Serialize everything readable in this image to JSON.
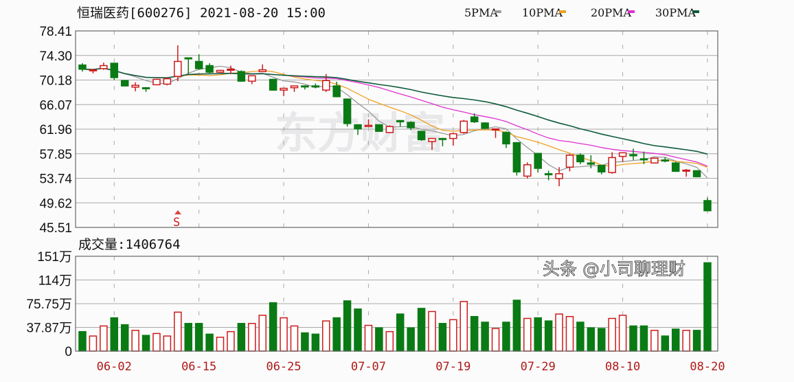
{
  "header": {
    "title": "恒瑞医药[600276] 2021-08-20 15:00",
    "legend": [
      {
        "label": "5PMA",
        "color": "#9a9a9a"
      },
      {
        "label": "10PMA",
        "color": "#f0a020"
      },
      {
        "label": "20PMA",
        "color": "#e030d0"
      },
      {
        "label": "30PMA",
        "color": "#0d5a3a"
      }
    ]
  },
  "volume_label": "成交量:1406764",
  "signal_marker": "S",
  "watermark": "东方财富",
  "credit": "头条 @小司聊理财",
  "colors": {
    "up": "#cc1a1a",
    "down": "#0a7a14",
    "grid": "#9a9a9a",
    "date": "#b01818"
  },
  "chart_data": [
    {
      "type": "candlestick",
      "title": "恒瑞医药[600276] 2021-08-20 15:00",
      "y_ticks": [
        "78.41",
        "74.30",
        "70.18",
        "66.07",
        "61.96",
        "57.85",
        "53.74",
        "49.62",
        "45.51"
      ],
      "ylim": [
        45.51,
        78.41
      ],
      "x_tick_labels": [
        "06-02",
        "06-15",
        "06-25",
        "07-07",
        "07-19",
        "07-29",
        "08-10",
        "08-20"
      ],
      "grid": true,
      "dates": [
        "05-28",
        "05-31",
        "06-01",
        "06-02",
        "06-03",
        "06-04",
        "06-07",
        "06-08",
        "06-09",
        "06-10",
        "06-11",
        "06-15",
        "06-16",
        "06-17",
        "06-18",
        "06-21",
        "06-22",
        "06-23",
        "06-24",
        "06-25",
        "06-28",
        "06-29",
        "06-30",
        "07-01",
        "07-02",
        "07-05",
        "07-06",
        "07-07",
        "07-08",
        "07-09",
        "07-12",
        "07-13",
        "07-14",
        "07-15",
        "07-16",
        "07-19",
        "07-20",
        "07-21",
        "07-22",
        "07-23",
        "07-26",
        "07-27",
        "07-28",
        "07-29",
        "07-30",
        "08-02",
        "08-03",
        "08-04",
        "08-05",
        "08-06",
        "08-09",
        "08-10",
        "08-11",
        "08-12",
        "08-13",
        "08-16",
        "08-17",
        "08-18",
        "08-19",
        "08-20"
      ],
      "open": [
        72.7,
        71.8,
        72.1,
        73.0,
        70.1,
        69.0,
        68.9,
        69.4,
        69.5,
        70.8,
        73.9,
        73.3,
        72.6,
        71.5,
        71.9,
        71.6,
        70.0,
        71.6,
        70.3,
        68.5,
        68.9,
        69.2,
        69.2,
        68.5,
        69.2,
        67.0,
        62.7,
        62.4,
        62.7,
        61.4,
        63.4,
        63.1,
        61.6,
        59.9,
        60.4,
        60.4,
        61.4,
        64.0,
        63.0,
        61.9,
        61.4,
        59.7,
        54.1,
        57.9,
        54.5,
        53.7,
        55.6,
        57.6,
        56.3,
        55.9,
        54.7,
        57.4,
        57.7,
        57.0,
        56.3,
        56.8,
        56.3,
        55.0,
        55.0,
        50.0
      ],
      "high": [
        73.0,
        72.0,
        73.1,
        73.0,
        70.2,
        69.8,
        69.0,
        70.4,
        70.6,
        76.0,
        73.9,
        74.5,
        73.0,
        71.9,
        72.6,
        71.8,
        71.0,
        72.8,
        70.4,
        68.9,
        69.2,
        69.3,
        69.6,
        71.2,
        69.9,
        67.1,
        62.8,
        63.6,
        62.8,
        62.6,
        63.5,
        63.3,
        61.7,
        60.5,
        60.5,
        61.4,
        63.5,
        64.6,
        63.1,
        62.0,
        61.6,
        59.8,
        56.4,
        58.0,
        55.0,
        55.6,
        57.8,
        57.9,
        57.6,
        56.0,
        58.1,
        58.1,
        58.7,
        58.2,
        57.2,
        57.3,
        56.5,
        55.3,
        55.1,
        50.5
      ],
      "low": [
        71.6,
        71.3,
        71.9,
        70.2,
        69.1,
        68.3,
        68.2,
        69.3,
        69.3,
        70.0,
        71.2,
        71.9,
        71.2,
        71.4,
        71.2,
        69.9,
        69.5,
        71.6,
        68.4,
        67.5,
        68.2,
        68.6,
        68.8,
        68.2,
        67.3,
        62.4,
        61.0,
        62.3,
        61.5,
        61.3,
        62.4,
        61.8,
        60.0,
        58.5,
        59.1,
        59.2,
        61.2,
        63.0,
        62.0,
        60.5,
        58.8,
        54.2,
        53.7,
        54.7,
        53.4,
        52.4,
        54.9,
        56.1,
        55.4,
        54.4,
        54.5,
        56.5,
        56.8,
        56.1,
        56.2,
        56.4,
        54.8,
        54.0,
        53.9,
        48.2
      ],
      "close": [
        72.0,
        71.9,
        72.6,
        70.6,
        69.2,
        69.3,
        68.8,
        70.3,
        70.4,
        73.3,
        73.8,
        72.1,
        71.5,
        71.8,
        72.0,
        70.0,
        70.9,
        71.9,
        68.5,
        68.8,
        69.2,
        69.1,
        69.1,
        70.1,
        67.4,
        62.9,
        62.0,
        62.6,
        61.6,
        62.4,
        63.2,
        62.2,
        60.2,
        60.4,
        60.3,
        61.2,
        63.3,
        63.2,
        62.1,
        62.0,
        59.5,
        54.8,
        56.0,
        55.4,
        54.4,
        54.5,
        57.6,
        56.5,
        56.1,
        54.8,
        57.2,
        58.0,
        57.5,
        56.9,
        57.1,
        56.7,
        54.9,
        55.1,
        54.0,
        48.3
      ]
    },
    {
      "type": "bar",
      "title": "成交量:1406764",
      "y_ticks": [
        "151万",
        "114万",
        "75.75万",
        "37.87万",
        "0"
      ],
      "ylim": [
        0,
        151
      ],
      "unit": "万",
      "values": [
        31,
        24,
        40,
        53,
        42,
        33,
        25,
        28,
        24,
        62,
        44,
        44,
        27,
        22,
        31,
        44,
        44,
        57,
        77,
        53,
        40,
        29,
        27,
        48,
        53,
        80,
        67,
        41,
        37,
        31,
        59,
        37,
        68,
        63,
        44,
        50,
        79,
        55,
        46,
        36,
        46,
        81,
        52,
        53,
        48,
        59,
        55,
        46,
        37,
        36,
        52,
        57,
        40,
        40,
        33,
        24,
        35,
        33,
        33,
        140.68
      ]
    }
  ]
}
